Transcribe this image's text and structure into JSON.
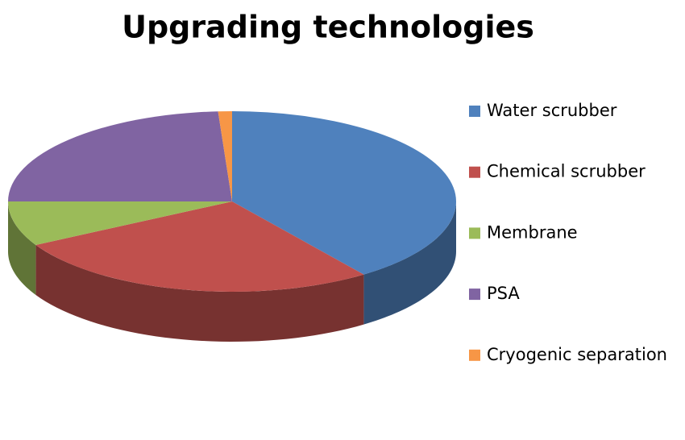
{
  "chart_data": {
    "type": "pie",
    "title": "Upgrading technologies",
    "categories": [
      "Water scrubber",
      "Chemical scrubber",
      "Membrane",
      "PSA",
      "Cryogenic separation"
    ],
    "values": [
      40,
      27,
      8,
      24,
      1
    ],
    "colors": [
      "#4f81bd",
      "#c0504d",
      "#9bbb59",
      "#8064a2",
      "#f79646"
    ],
    "legend": "right"
  }
}
